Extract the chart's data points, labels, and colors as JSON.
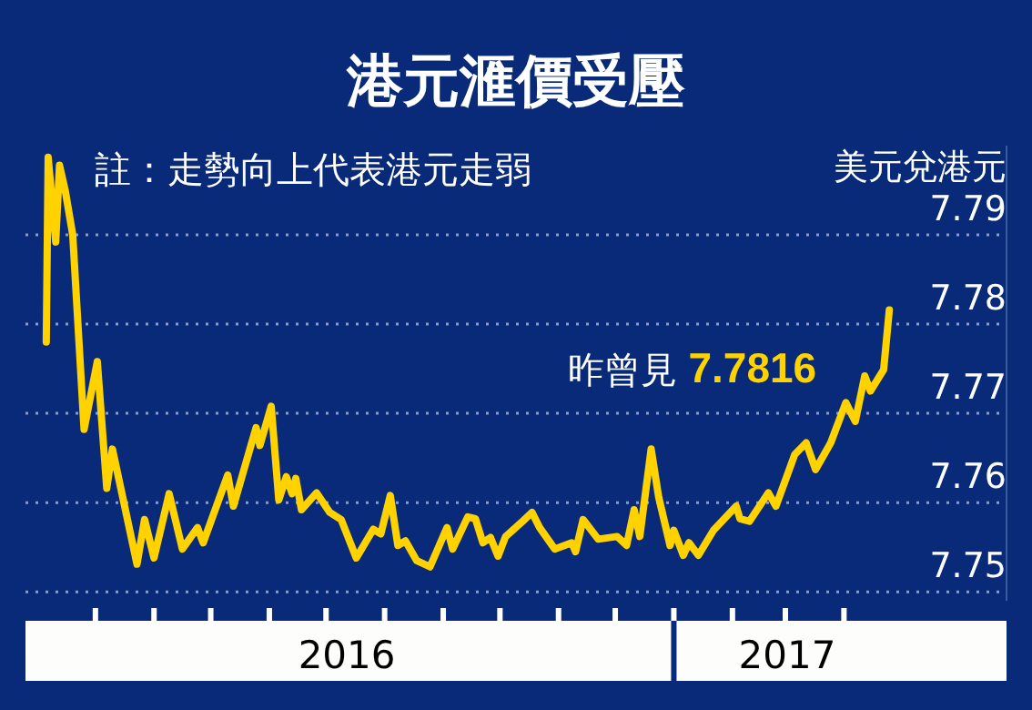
{
  "chart_data": {
    "type": "line",
    "title": "港元滙價受壓",
    "ylabel": "美元兌港元",
    "annotations": [
      "註：走勢向上代表港元走弱",
      {
        "text": "昨曾見 7.7816",
        "x": "2017-04-25",
        "y": 7.7816
      }
    ],
    "x": [
      "2016-02-04",
      "2016-02-05",
      "2016-02-09",
      "2016-02-11",
      "2016-02-14",
      "2016-02-18",
      "2016-02-24",
      "2016-03-02",
      "2016-03-07",
      "2016-03-10",
      "2016-03-23",
      "2016-03-27",
      "2016-04-01",
      "2016-04-09",
      "2016-04-16",
      "2016-04-24",
      "2016-04-27",
      "2016-05-10",
      "2016-05-13",
      "2016-05-25",
      "2016-05-27",
      "2016-06-02",
      "2016-06-06",
      "2016-06-10",
      "2016-06-13",
      "2016-06-15",
      "2016-06-18",
      "2016-06-26",
      "2016-07-03",
      "2016-07-09",
      "2016-07-17",
      "2016-07-26",
      "2016-07-30",
      "2016-08-04",
      "2016-08-08",
      "2016-08-12",
      "2016-08-18",
      "2016-08-25",
      "2016-09-03",
      "2016-09-06",
      "2016-09-14",
      "2016-09-18",
      "2016-09-22",
      "2016-09-26",
      "2016-09-30",
      "2016-10-04",
      "2016-10-13",
      "2016-10-18",
      "2016-10-22",
      "2016-10-30",
      "2016-11-08",
      "2016-11-10",
      "2016-11-14",
      "2016-11-22",
      "2016-12-02",
      "2016-12-07",
      "2016-12-11",
      "2016-12-14",
      "2016-12-20",
      "2016-12-24",
      "2016-12-30",
      "2017-01-01",
      "2017-01-06",
      "2017-01-09",
      "2017-01-14",
      "2017-01-22",
      "2017-02-03",
      "2017-02-05",
      "2017-02-10",
      "2017-02-20",
      "2017-02-24",
      "2017-03-06",
      "2017-03-12",
      "2017-03-17",
      "2017-03-25",
      "2017-04-02",
      "2017-04-07",
      "2017-04-12",
      "2017-04-15",
      "2017-04-22",
      "2017-04-25"
    ],
    "series": [
      {
        "color": "#ffd200",
        "values": [
          7.778,
          7.7987,
          7.7892,
          7.7978,
          7.795,
          7.79,
          7.7682,
          7.7758,
          7.7616,
          7.766,
          7.7531,
          7.7581,
          7.7538,
          7.761,
          7.7548,
          7.7572,
          7.7555,
          7.7631,
          7.7596,
          7.7684,
          7.7664,
          7.7708,
          7.7603,
          7.7629,
          7.761,
          7.7627,
          7.7592,
          7.7611,
          7.7589,
          7.7581,
          7.7538,
          7.757,
          7.7565,
          7.7608,
          7.7552,
          7.7557,
          7.7535,
          7.7528,
          7.7572,
          7.7548,
          7.7584,
          7.7582,
          7.7555,
          7.7561,
          7.754,
          7.7562,
          7.7579,
          7.7589,
          7.7572,
          7.7548,
          7.7555,
          7.7545,
          7.7581,
          7.7559,
          7.7562,
          7.7552,
          7.7592,
          7.7562,
          7.766,
          7.7606,
          7.7552,
          7.7569,
          7.7541,
          7.7555,
          7.7541,
          7.7569,
          7.7596,
          7.7582,
          7.7579,
          7.7611,
          7.7596,
          7.7654,
          7.7667,
          7.7637,
          7.7667,
          7.7712,
          7.7691,
          7.7742,
          7.7725,
          7.7749,
          7.7816
        ]
      }
    ],
    "xlim": [
      "2016-01-24",
      "2017-06-26"
    ],
    "xticks": [
      {
        "value": "2016-03-01",
        "label": null
      },
      {
        "value": "2016-04-01",
        "label": null
      },
      {
        "value": "2016-05-01",
        "label": null
      },
      {
        "value": "2016-06-01",
        "label": null
      },
      {
        "value": "2016-07-01",
        "label": null
      },
      {
        "value": "2016-08-01",
        "label": null
      },
      {
        "value": "2016-09-01",
        "label": null
      },
      {
        "value": "2016-10-01",
        "label": null
      },
      {
        "value": "2016-11-01",
        "label": null
      },
      {
        "value": "2016-12-01",
        "label": null
      },
      {
        "value": "2017-01-01",
        "label": null
      },
      {
        "value": "2017-02-01",
        "label": null
      },
      {
        "value": "2017-03-01",
        "label": null
      },
      {
        "value": "2017-04-01",
        "label": null
      },
      {
        "value": "2016-07-12",
        "label": "2016"
      },
      {
        "value": "2017-03-02",
        "label": "2017"
      }
    ],
    "ylim": [
      7.749,
      7.8
    ],
    "yticks": [
      7.75,
      7.76,
      7.77,
      7.78,
      7.79
    ],
    "grid": "y",
    "line_style": "solid",
    "marker": "none"
  }
}
